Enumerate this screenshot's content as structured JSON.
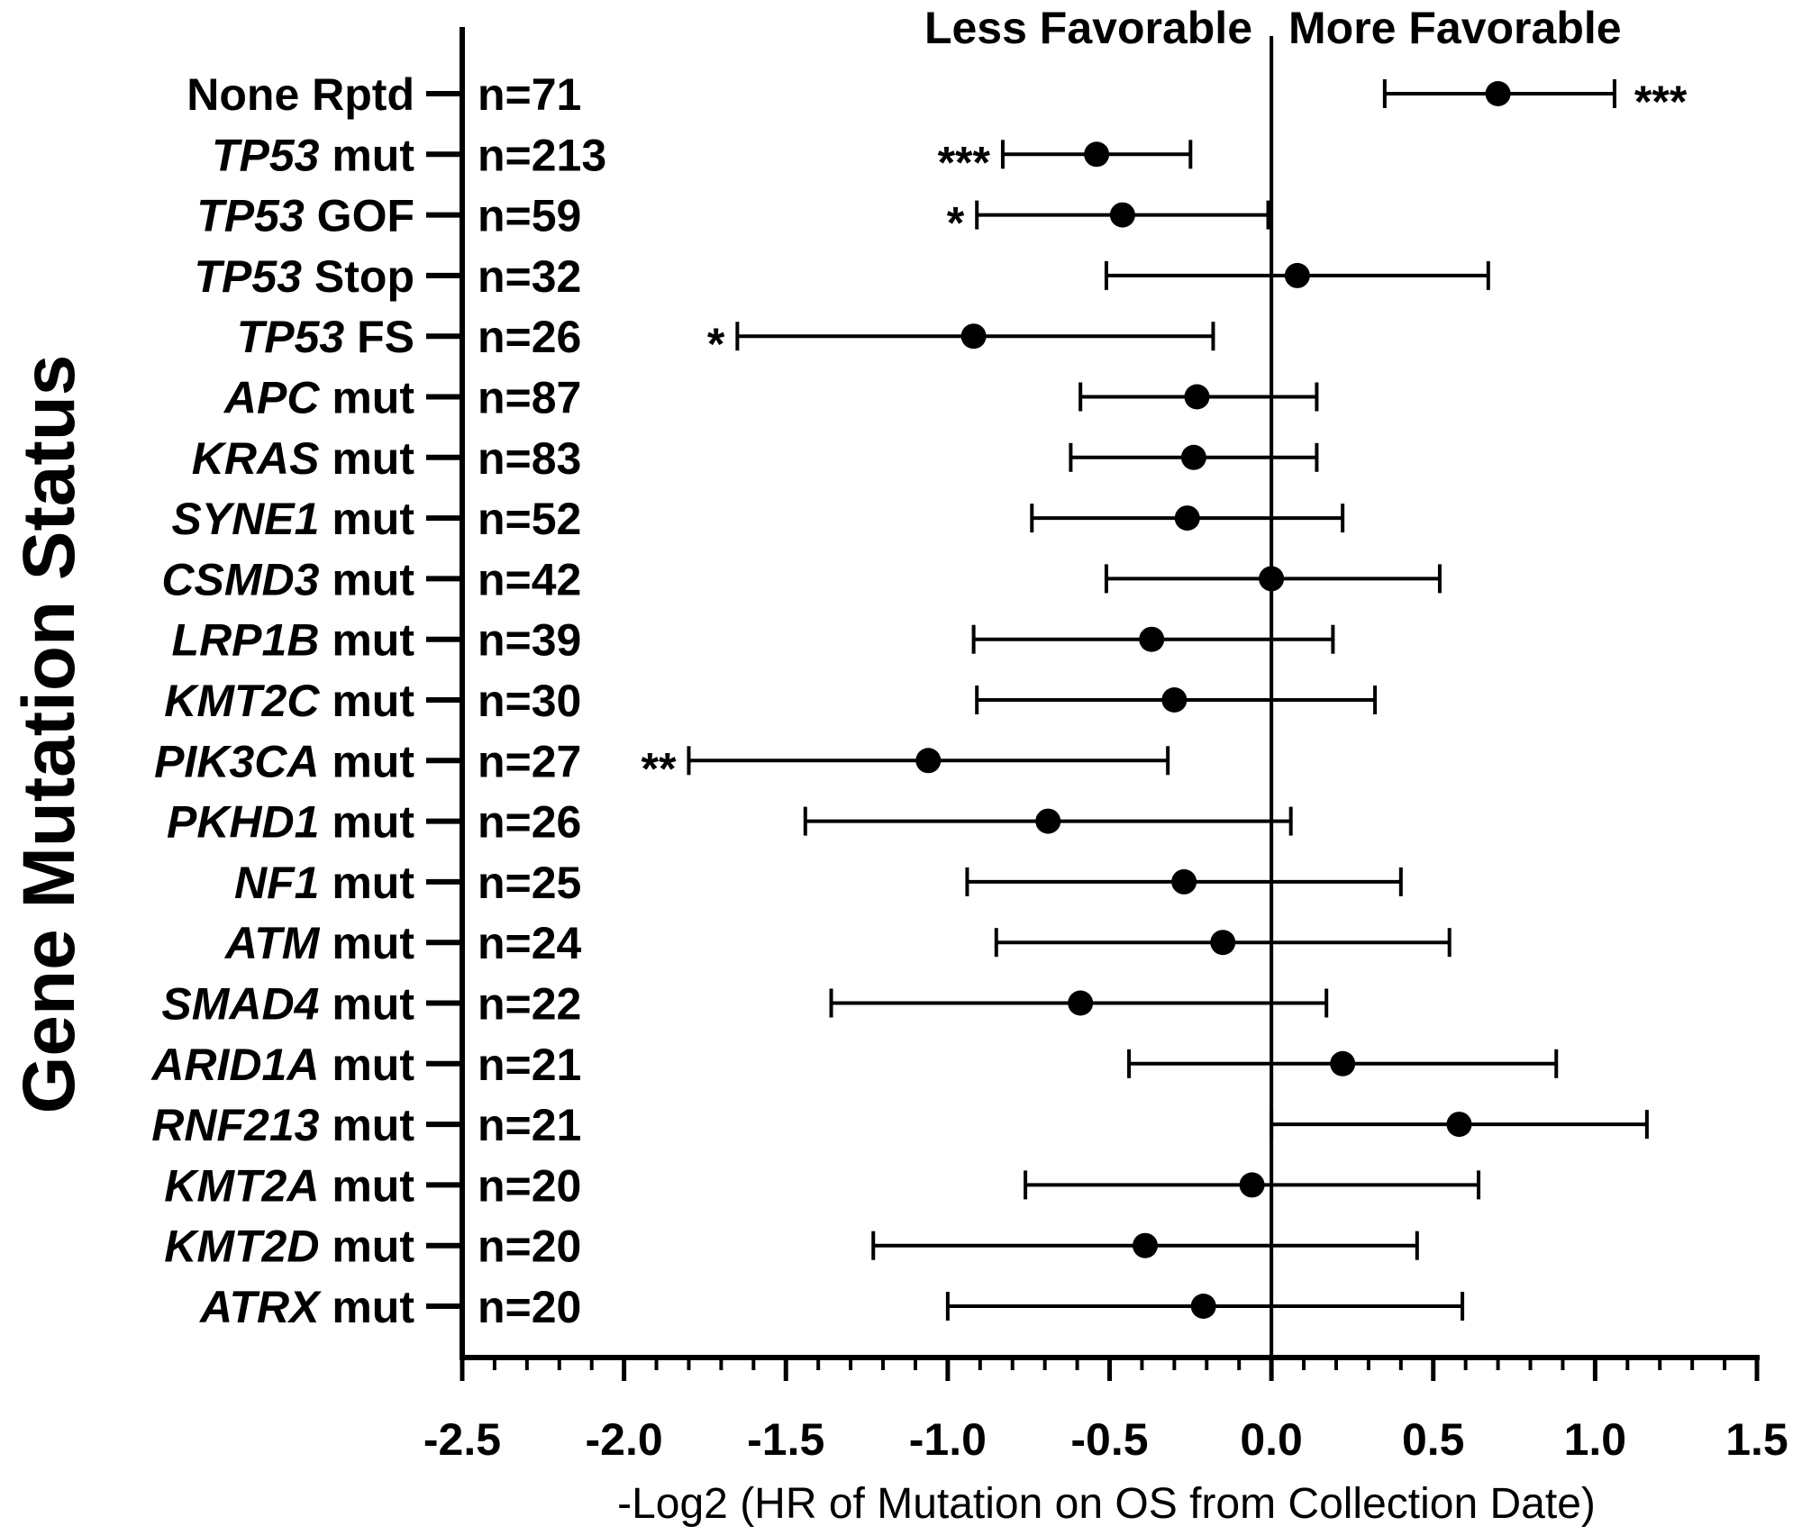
{
  "chart_data": {
    "type": "forest",
    "ylabel": "Gene Mutation Status",
    "xlabel": "-Log2 (HR of Mutation on OS from Collection Date)",
    "xlim": [
      -2.5,
      1.5
    ],
    "x_ticks": [
      "-2.5",
      "-2.0",
      "-1.5",
      "-1.0",
      "-0.5",
      "0.0",
      "0.5",
      "1.0",
      "1.5"
    ],
    "x_tick_values": [
      -2.5,
      -2.0,
      -1.5,
      -1.0,
      -0.5,
      0.0,
      0.5,
      1.0,
      1.5
    ],
    "header_left": "Less Favorable",
    "header_right": "More Favorable",
    "reference_x": 0.0,
    "rows": [
      {
        "gene": "",
        "suffix": "None Rptd",
        "n": "n=71",
        "est": 0.7,
        "lo": 0.35,
        "hi": 1.06,
        "sig": "***",
        "sig_side": "right"
      },
      {
        "gene": "TP53",
        "suffix": " mut",
        "n": "n=213",
        "est": -0.54,
        "lo": -0.83,
        "hi": -0.25,
        "sig": "***",
        "sig_side": "left"
      },
      {
        "gene": "TP53",
        "suffix": " GOF",
        "n": "n=59",
        "est": -0.46,
        "lo": -0.91,
        "hi": -0.01,
        "sig": "*",
        "sig_side": "left"
      },
      {
        "gene": "TP53",
        "suffix": " Stop",
        "n": "n=32",
        "est": 0.08,
        "lo": -0.51,
        "hi": 0.67,
        "sig": "",
        "sig_side": ""
      },
      {
        "gene": "TP53",
        "suffix": " FS",
        "n": "n=26",
        "est": -0.92,
        "lo": -1.65,
        "hi": -0.18,
        "sig": "*",
        "sig_side": "left"
      },
      {
        "gene": "APC",
        "suffix": " mut",
        "n": "n=87",
        "est": -0.23,
        "lo": -0.59,
        "hi": 0.14,
        "sig": "",
        "sig_side": ""
      },
      {
        "gene": "KRAS",
        "suffix": " mut",
        "n": "n=83",
        "est": -0.24,
        "lo": -0.62,
        "hi": 0.14,
        "sig": "",
        "sig_side": ""
      },
      {
        "gene": "SYNE1",
        "suffix": " mut",
        "n": "n=52",
        "est": -0.26,
        "lo": -0.74,
        "hi": 0.22,
        "sig": "",
        "sig_side": ""
      },
      {
        "gene": "CSMD3",
        "suffix": " mut",
        "n": "n=42",
        "est": 0.0,
        "lo": -0.51,
        "hi": 0.52,
        "sig": "",
        "sig_side": ""
      },
      {
        "gene": "LRP1B",
        "suffix": " mut",
        "n": "n=39",
        "est": -0.37,
        "lo": -0.92,
        "hi": 0.19,
        "sig": "",
        "sig_side": ""
      },
      {
        "gene": "KMT2C",
        "suffix": " mut",
        "n": "n=30",
        "est": -0.3,
        "lo": -0.91,
        "hi": 0.32,
        "sig": "",
        "sig_side": ""
      },
      {
        "gene": "PIK3CA",
        "suffix": " mut",
        "n": "n=27",
        "est": -1.06,
        "lo": -1.8,
        "hi": -0.32,
        "sig": "**",
        "sig_side": "left"
      },
      {
        "gene": "PKHD1",
        "suffix": " mut",
        "n": "n=26",
        "est": -0.69,
        "lo": -1.44,
        "hi": 0.06,
        "sig": "",
        "sig_side": ""
      },
      {
        "gene": "NF1",
        "suffix": " mut",
        "n": "n=25",
        "est": -0.27,
        "lo": -0.94,
        "hi": 0.4,
        "sig": "",
        "sig_side": ""
      },
      {
        "gene": "ATM",
        "suffix": " mut",
        "n": "n=24",
        "est": -0.15,
        "lo": -0.85,
        "hi": 0.55,
        "sig": "",
        "sig_side": ""
      },
      {
        "gene": "SMAD4",
        "suffix": " mut",
        "n": "n=22",
        "est": -0.59,
        "lo": -1.36,
        "hi": 0.17,
        "sig": "",
        "sig_side": ""
      },
      {
        "gene": "ARID1A",
        "suffix": " mut",
        "n": "n=21",
        "est": 0.22,
        "lo": -0.44,
        "hi": 0.88,
        "sig": "",
        "sig_side": ""
      },
      {
        "gene": "RNF213",
        "suffix": " mut",
        "n": "n=21",
        "est": 0.58,
        "lo": 0.0,
        "hi": 1.16,
        "sig": "",
        "sig_side": ""
      },
      {
        "gene": "KMT2A",
        "suffix": " mut",
        "n": "n=20",
        "est": -0.06,
        "lo": -0.76,
        "hi": 0.64,
        "sig": "",
        "sig_side": ""
      },
      {
        "gene": "KMT2D",
        "suffix": " mut",
        "n": "n=20",
        "est": -0.39,
        "lo": -1.23,
        "hi": 0.45,
        "sig": "",
        "sig_side": ""
      },
      {
        "gene": "ATRX",
        "suffix": " mut",
        "n": "n=20",
        "est": -0.21,
        "lo": -1.0,
        "hi": 0.59,
        "sig": "",
        "sig_side": ""
      }
    ]
  }
}
